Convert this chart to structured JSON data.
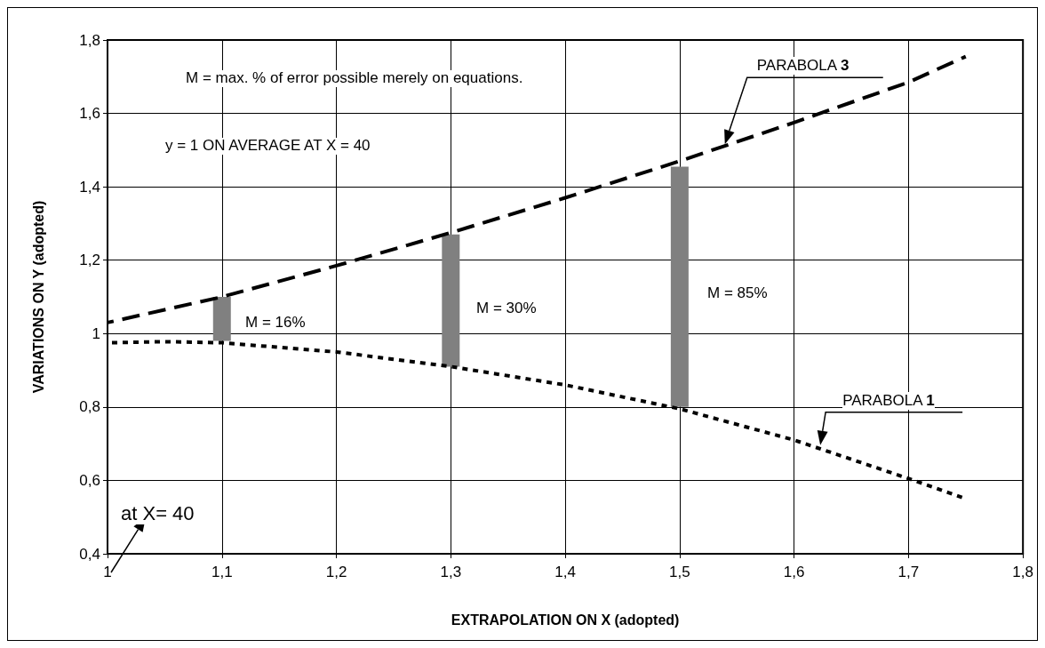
{
  "chart_data": {
    "type": "line",
    "xlabel": "EXTRAPOLATION ON X (adopted)",
    "ylabel": "VARIATIONS ON Y (adopted)",
    "xlim": [
      1,
      1.8
    ],
    "xticks": [
      1,
      {
        "value": 1.1,
        "label": "1,1"
      },
      {
        "value": 1.2,
        "label": "1,2"
      },
      {
        "value": 1.3,
        "label": "1,3"
      },
      {
        "value": 1.4,
        "label": "1,4"
      },
      {
        "value": 1.5,
        "label": "1,5"
      },
      {
        "value": 1.6,
        "label": "1,6"
      },
      {
        "value": 1.7,
        "label": "1,7"
      },
      {
        "value": 1.8,
        "label": "1,8"
      }
    ],
    "ylim": [
      0.4,
      1.8
    ],
    "yticks": [
      {
        "value": 0.4,
        "label": "0,4"
      },
      {
        "value": 0.6,
        "label": "0,6"
      },
      {
        "value": 0.8,
        "label": "0,8"
      },
      1,
      {
        "value": 1.2,
        "label": "1,2"
      },
      {
        "value": 1.4,
        "label": "1,4"
      },
      {
        "value": 1.6,
        "label": "1,6"
      },
      {
        "value": 1.8,
        "label": "1,8"
      }
    ],
    "grid": true,
    "marker": "none",
    "series": [
      {
        "name": "PARABOLA 3",
        "line_style": "dashed",
        "color": "#000000",
        "x": [
          1,
          1.1,
          1.2,
          1.3,
          1.4,
          1.5,
          1.6,
          1.7,
          1.75
        ],
        "values": [
          1.03,
          1.1,
          1.185,
          1.275,
          1.37,
          1.47,
          1.575,
          1.685,
          1.755
        ]
      },
      {
        "name": "PARABOLA 1",
        "line_style": "dotted",
        "color": "#000000",
        "x": [
          1,
          1.05,
          1.1,
          1.2,
          1.3,
          1.4,
          1.5,
          1.6,
          1.7,
          1.75
        ],
        "values": [
          0.975,
          0.978,
          0.975,
          0.95,
          0.91,
          0.86,
          0.795,
          0.71,
          0.605,
          0.55
        ]
      },
      {
        "type": "bar",
        "color": "#808080",
        "x": [
          1.1,
          1.3,
          1.5
        ],
        "base": [
          0.98,
          0.91,
          0.8
        ],
        "values": [
          0.12,
          0.36,
          0.655
        ]
      }
    ],
    "annotations": [
      "M = max. % of error possible merely on equations.",
      "y = 1 ON AVERAGE AT X = 40",
      "M = 16%",
      "M = 30%",
      "M = 85%",
      "at X= 40"
    ]
  }
}
